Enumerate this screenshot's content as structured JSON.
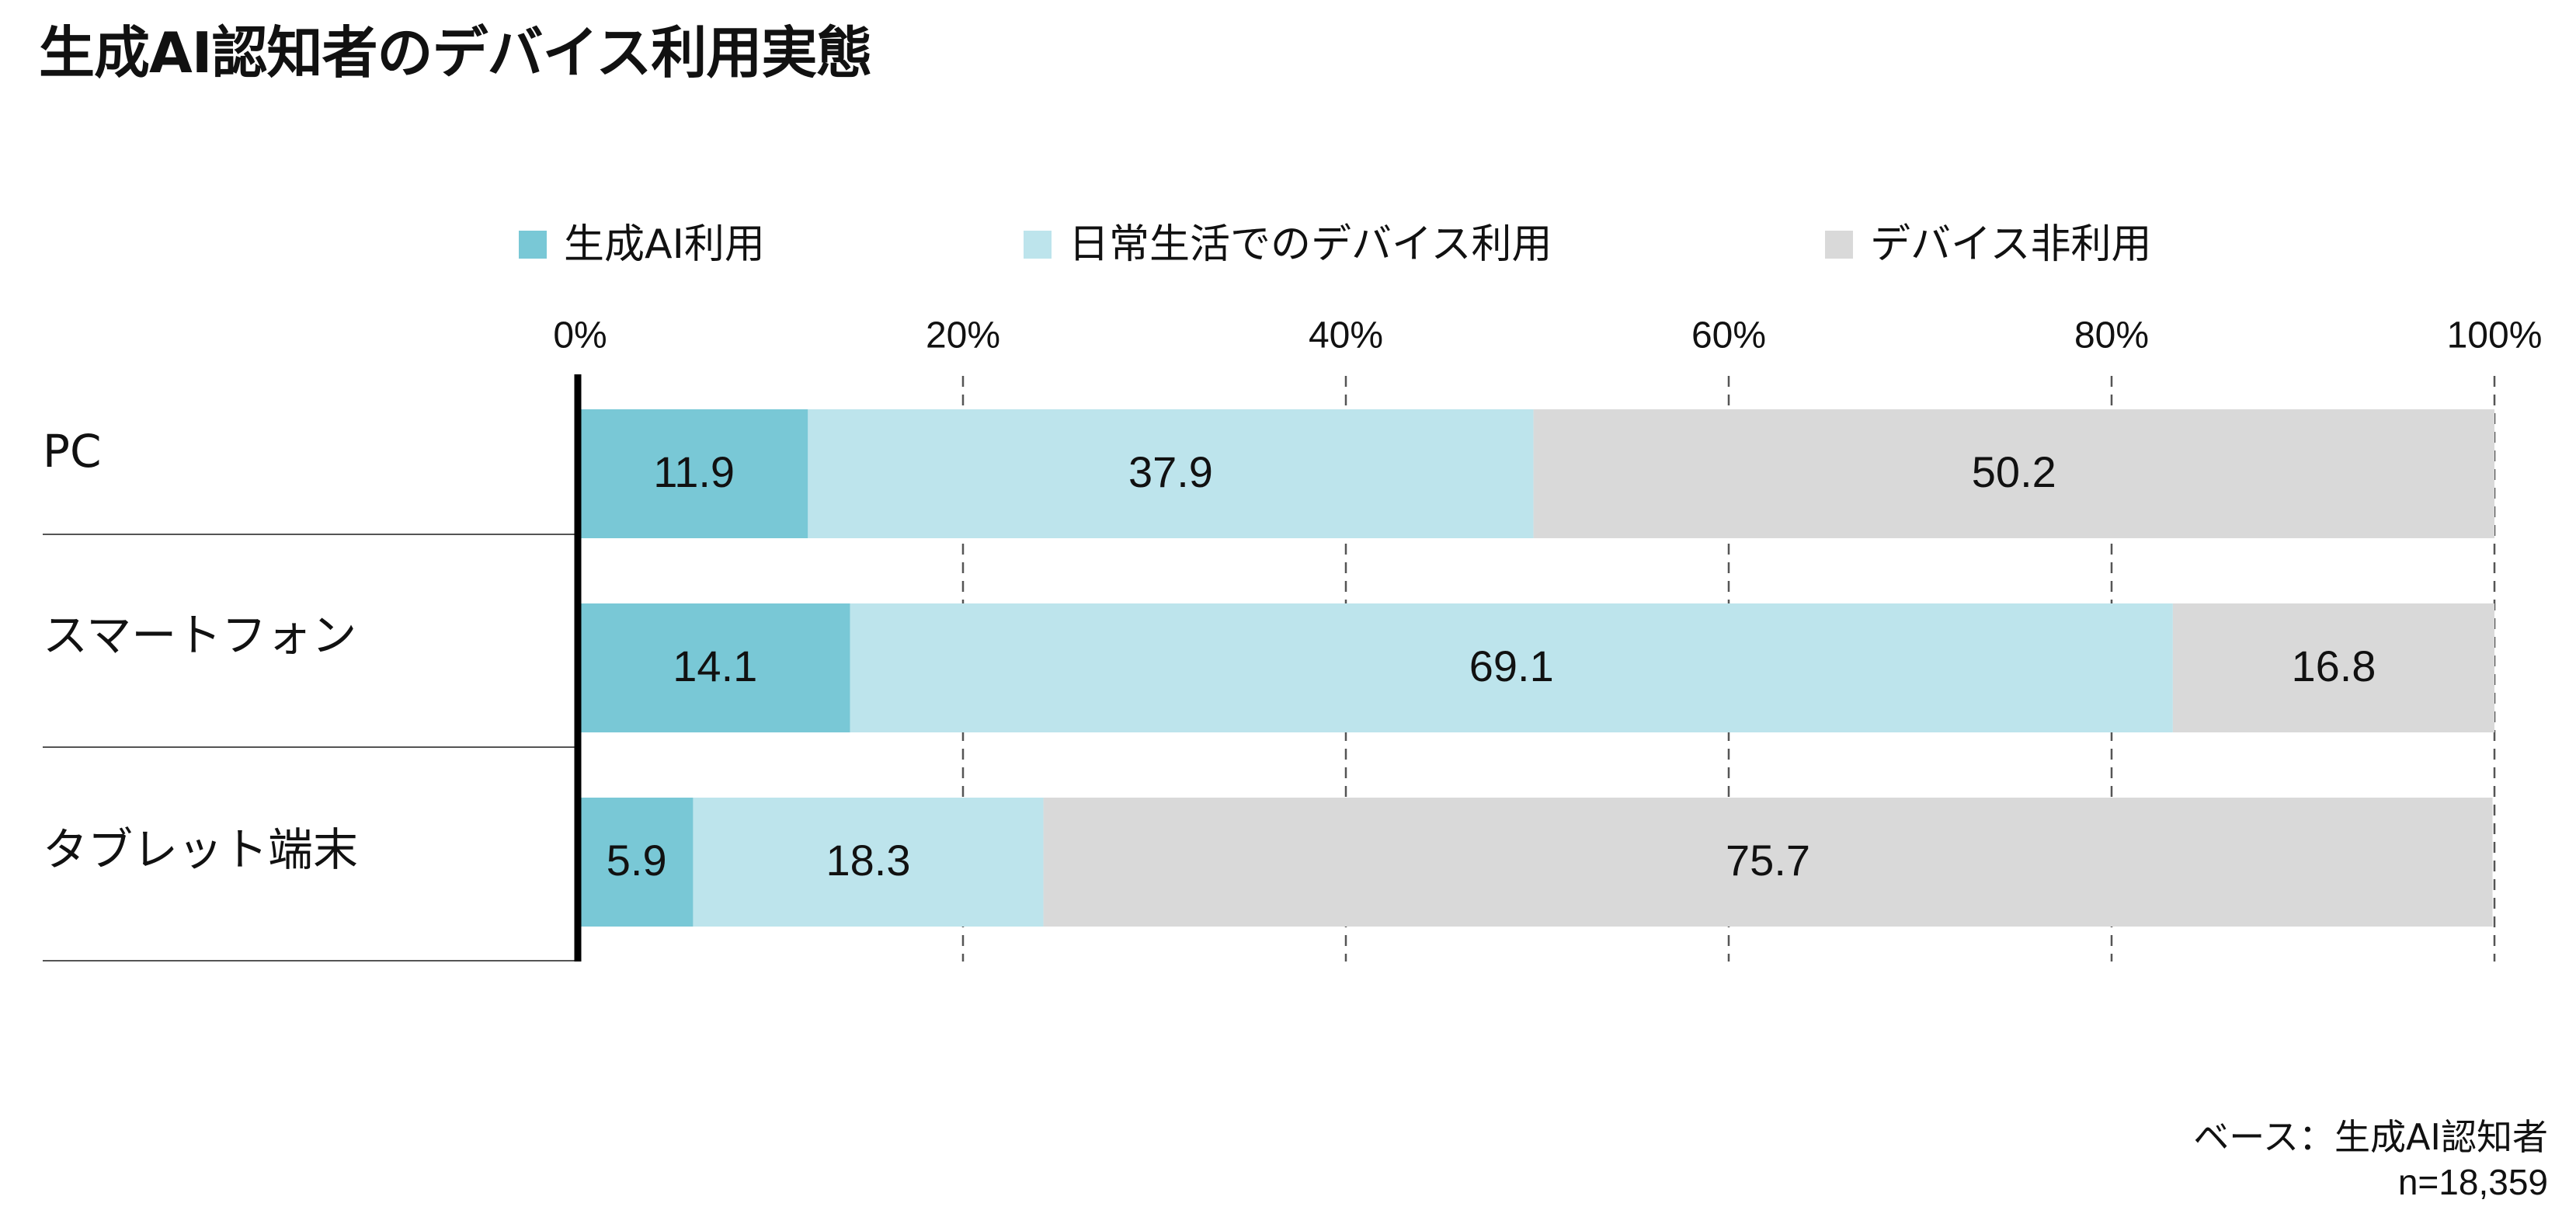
{
  "title": "生成AI認知者のデバイス利用実態",
  "colors": {
    "genai": "#79c8d6",
    "daily": "#bde4ec",
    "nonuse": "#d9d9d9"
  },
  "legend": [
    {
      "label": "生成AI利用",
      "color": "#79c8d6"
    },
    {
      "label": "日常生活でのデバイス利用",
      "color": "#bde4ec"
    },
    {
      "label": "デバイス非利用",
      "color": "#d9d9d9"
    }
  ],
  "chart_data": {
    "type": "bar",
    "orientation": "horizontal",
    "stacked": true,
    "categories": [
      "PC",
      "スマートフォン",
      "タブレット端末"
    ],
    "series": [
      {
        "name": "生成AI利用",
        "values": [
          11.9,
          14.1,
          5.9
        ]
      },
      {
        "name": "日常生活でのデバイス利用",
        "values": [
          37.9,
          69.1,
          18.3
        ]
      },
      {
        "name": "デバイス非利用",
        "values": [
          50.2,
          16.8,
          75.7
        ]
      }
    ],
    "x_ticks": [
      "0%",
      "20%",
      "40%",
      "60%",
      "80%",
      "100%"
    ],
    "xlim": [
      0,
      100
    ],
    "grid": "vertical dashed",
    "legend_position": "top"
  },
  "notes": {
    "base": "ベース：生成AI認知者",
    "n": "n=18,359"
  }
}
